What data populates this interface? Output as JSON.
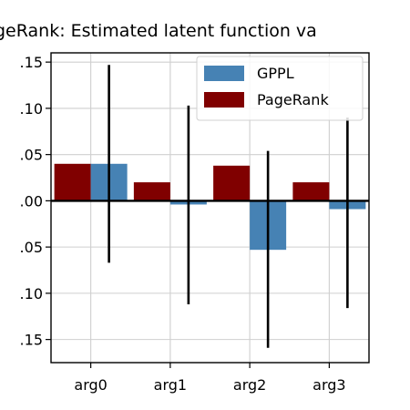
{
  "chart_data": {
    "type": "bar",
    "title": "geRank: Estimated latent function va",
    "categories": [
      "arg0",
      "arg1",
      "arg2",
      "arg3"
    ],
    "series": [
      {
        "name": "GPPL",
        "values": [
          0.04,
          -0.004,
          -0.053,
          -0.009
        ],
        "error_low": [
          -0.067,
          -0.112,
          -0.159,
          -0.116
        ],
        "error_high": [
          0.147,
          0.103,
          0.054,
          0.09
        ],
        "color": "#4682b4"
      },
      {
        "name": "PageRank",
        "values": [
          0.04,
          0.02,
          0.038,
          0.02
        ],
        "color": "#800000"
      }
    ],
    "ylim": [
      -0.175,
      0.16
    ],
    "yticks": [
      0.15,
      0.1,
      0.05,
      0.0,
      -0.05,
      -0.1,
      -0.15
    ],
    "ytick_labels": [
      ".15",
      ".10",
      ".05",
      ".00",
      ".05",
      ".10",
      ".15"
    ],
    "grid": true,
    "legend_position": "top-right",
    "zero_line": true
  }
}
